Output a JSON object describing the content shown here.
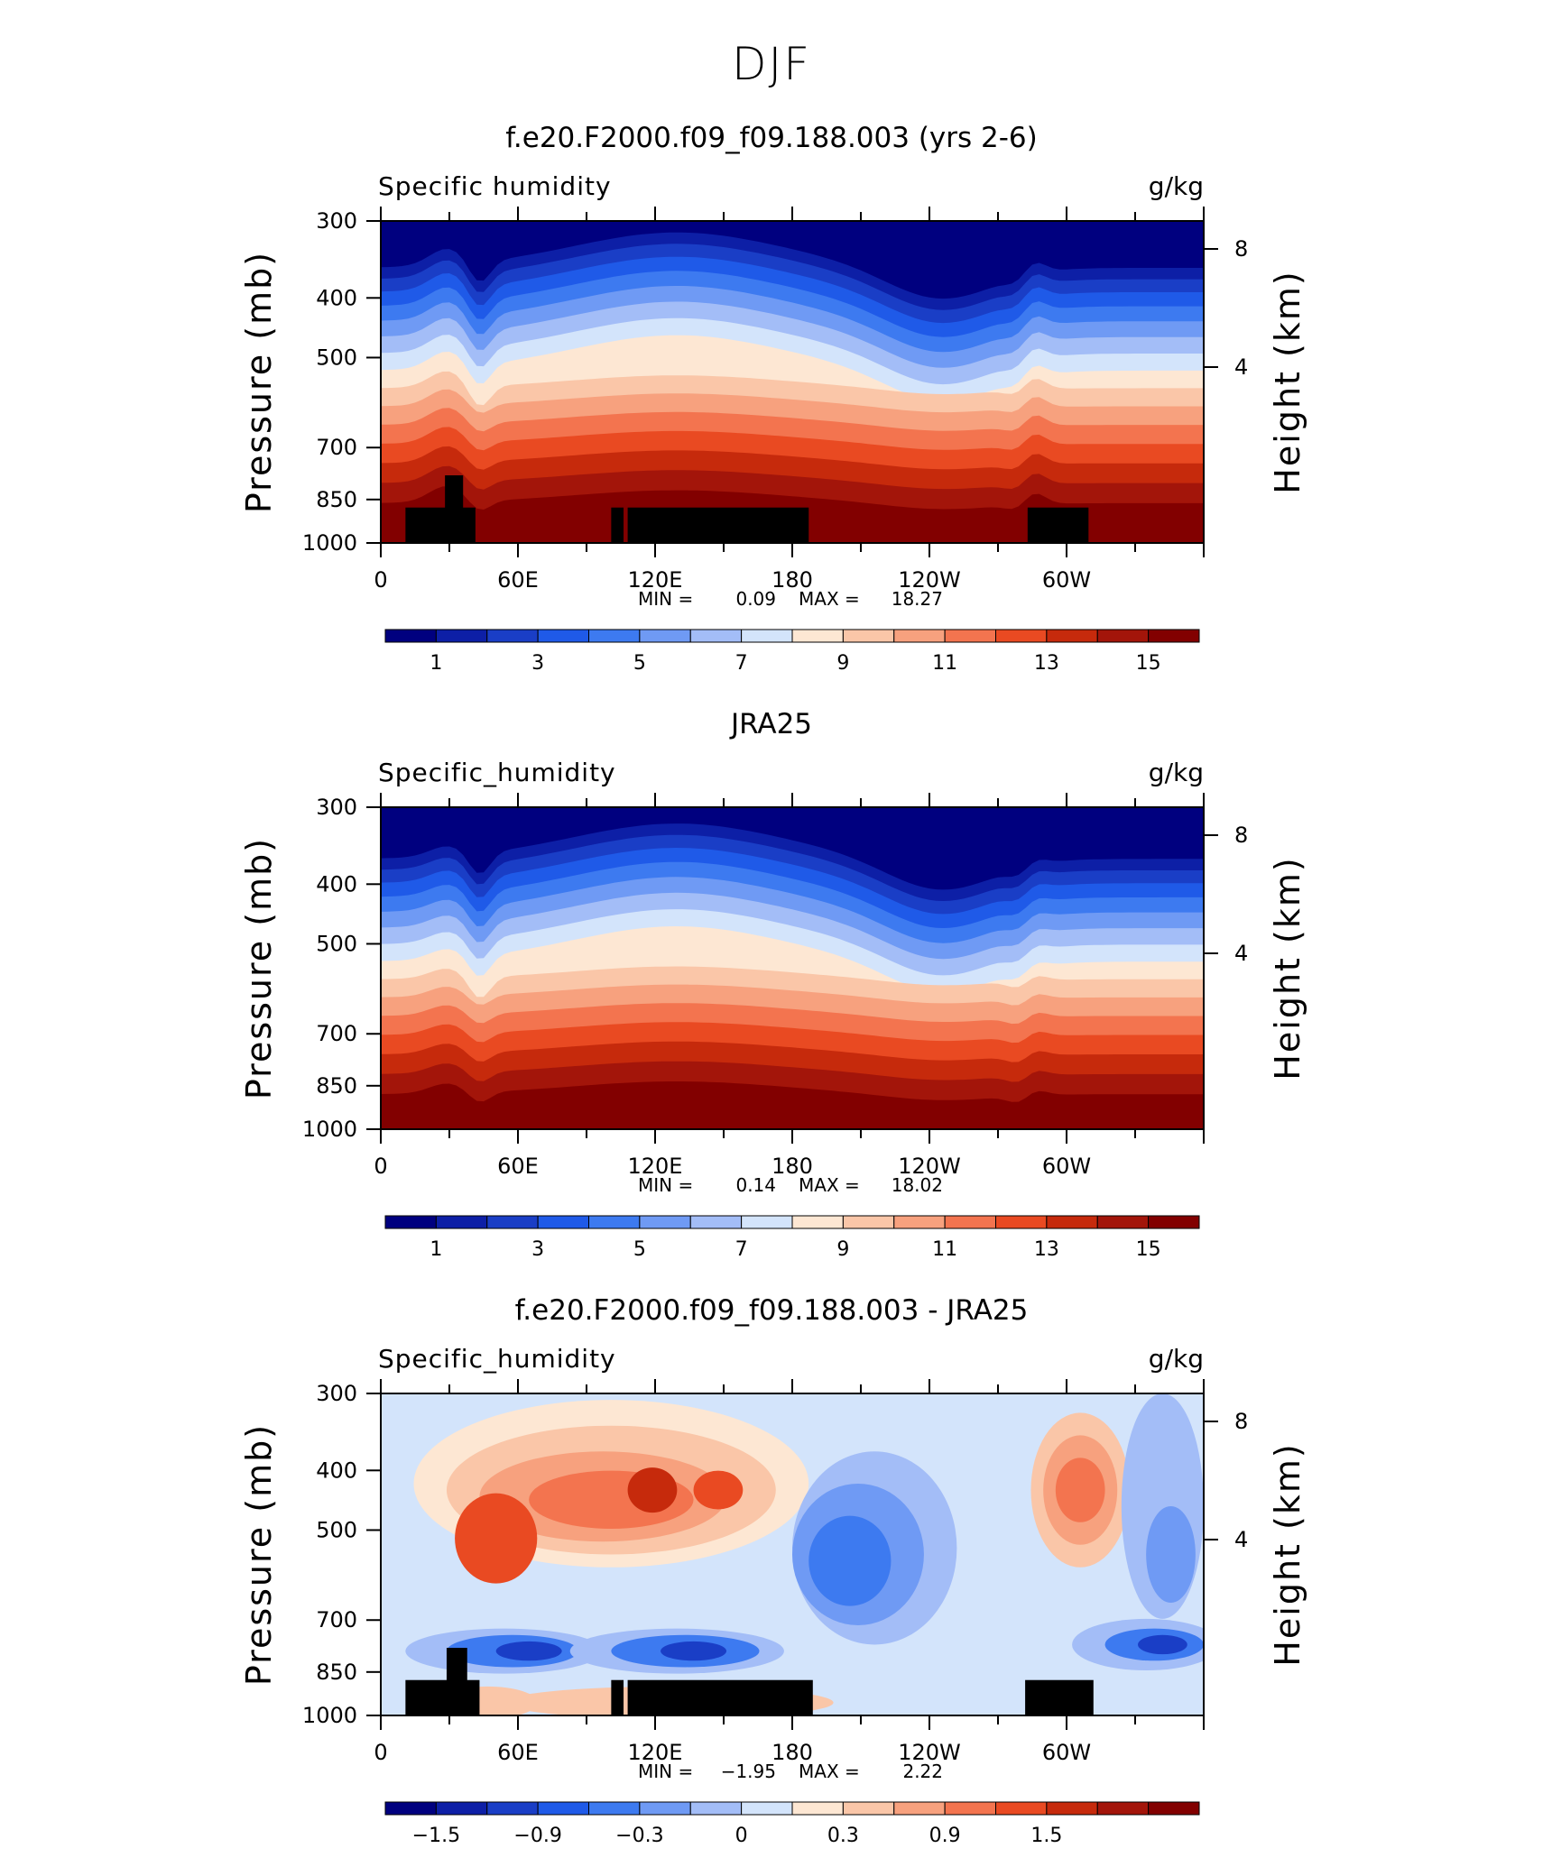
{
  "suptitle": "DJF",
  "colors": {
    "levels_scheme": [
      "#00007f",
      "#0d1fa6",
      "#1a3ec6",
      "#1f5ae8",
      "#3d7af0",
      "#6f9af4",
      "#a3bdf7",
      "#d3e4fb",
      "#fde7d3",
      "#fac6a8",
      "#f7a17e",
      "#f3744f",
      "#e94a22",
      "#c62a0c",
      "#a3150a",
      "#820000"
    ]
  },
  "chart_data": [
    {
      "type": "contour",
      "title": "f.e20.F2000.f09_f09.188.003 (yrs 2-6)",
      "left_label": "Specific humidity",
      "right_label": "g/kg",
      "ylabel": "Pressure (mb)",
      "ylabel_right": "Height (km)",
      "yticks": [
        "300",
        "400",
        "500",
        "700",
        "850",
        "1000"
      ],
      "yticks_right": [
        "8",
        "4"
      ],
      "xticks": [
        "0",
        "60E",
        "120E",
        "180",
        "120W",
        "60W"
      ],
      "min_label": "MIN =",
      "min_value": "0.09",
      "max_label": "MAX =",
      "max_value": "18.27",
      "colorbar_labels": [
        "1",
        "3",
        "5",
        "7",
        "9",
        "11",
        "13",
        "15"
      ],
      "range": [
        0.09,
        18.27
      ]
    },
    {
      "type": "contour",
      "title": "JRA25",
      "left_label": "Specific_humidity",
      "right_label": "g/kg",
      "ylabel": "Pressure (mb)",
      "ylabel_right": "Height (km)",
      "yticks": [
        "300",
        "400",
        "500",
        "700",
        "850",
        "1000"
      ],
      "yticks_right": [
        "8",
        "4"
      ],
      "xticks": [
        "0",
        "60E",
        "120E",
        "180",
        "120W",
        "60W"
      ],
      "min_label": "MIN =",
      "min_value": "0.14",
      "max_label": "MAX =",
      "max_value": "18.02",
      "colorbar_labels": [
        "1",
        "3",
        "5",
        "7",
        "9",
        "11",
        "13",
        "15"
      ],
      "range": [
        0.14,
        18.02
      ]
    },
    {
      "type": "contour",
      "title": "f.e20.F2000.f09_f09.188.003 - JRA25",
      "left_label": "Specific_humidity",
      "right_label": "g/kg",
      "ylabel": "Pressure (mb)",
      "ylabel_right": "Height (km)",
      "yticks": [
        "300",
        "400",
        "500",
        "700",
        "850",
        "1000"
      ],
      "yticks_right": [
        "8",
        "4"
      ],
      "xticks": [
        "0",
        "60E",
        "120E",
        "180",
        "120W",
        "60W"
      ],
      "min_label": "MIN =",
      "min_value": "−1.95",
      "max_label": "MAX =",
      "max_value": "2.22",
      "colorbar_labels": [
        "−1.5",
        "−0.9",
        "−0.3",
        "0",
        "0.3",
        "0.9",
        "1.5"
      ],
      "range": [
        -1.95,
        2.22
      ]
    }
  ]
}
